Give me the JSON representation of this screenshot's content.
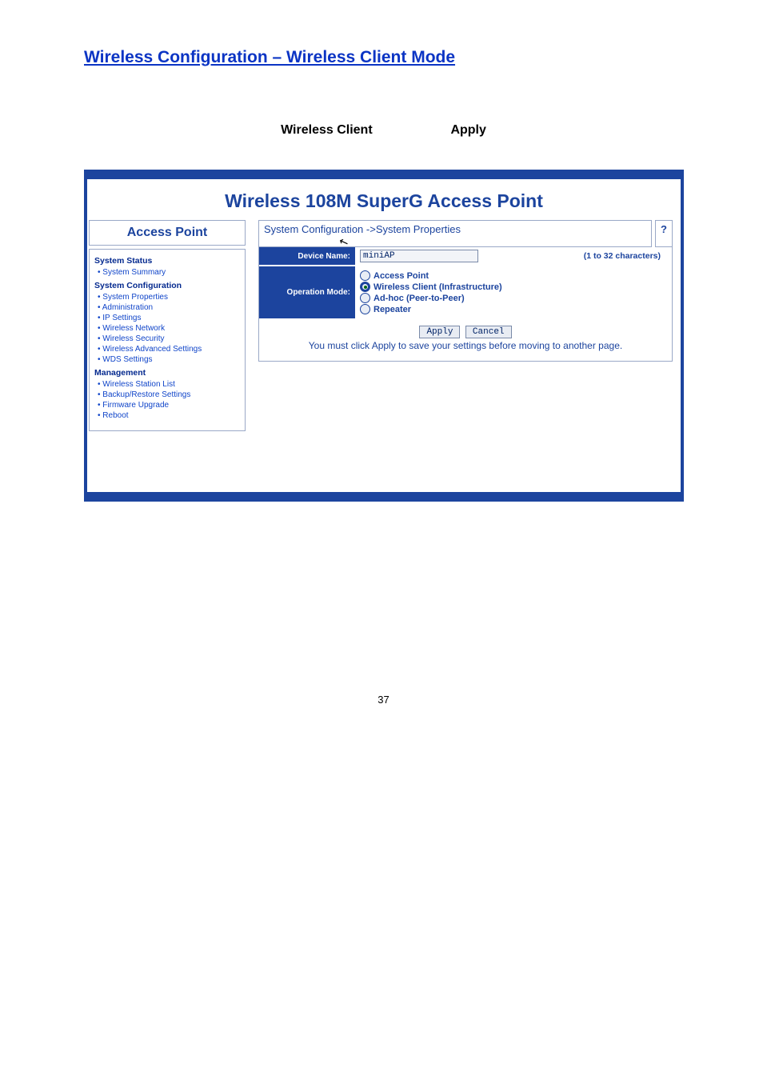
{
  "page": {
    "title": "Wireless Configuration – Wireless Client Mode",
    "instruction_a": "Wireless Client",
    "instruction_b": "Apply",
    "page_number": "37"
  },
  "screenshot": {
    "header": "Wireless 108M SuperG Access Point",
    "sidebar": {
      "logo_title": "Access Point",
      "group1": {
        "title": "System Status",
        "items": [
          "System Summary"
        ]
      },
      "group2": {
        "title": "System Configuration",
        "items": [
          "System Properties",
          "Administration",
          "IP Settings",
          "Wireless Network",
          "Wireless Security",
          "Wireless Advanced Settings",
          "WDS Settings"
        ]
      },
      "group3": {
        "title": "Management",
        "items": [
          "Wireless Station List",
          "Backup/Restore Settings",
          "Firmware Upgrade",
          "Reboot"
        ]
      }
    },
    "main": {
      "breadcrumb": "System Configuration ->System Properties",
      "help": "?",
      "device_name_label": "Device Name:",
      "device_name_value": "miniAP",
      "char_hint": "(1 to 32 characters)",
      "op_mode_label": "Operation Mode:",
      "op_modes": {
        "m0": "Access Point",
        "m1": "Wireless Client (Infrastructure)",
        "m2": "Ad-hoc (Peer-to-Peer)",
        "m3": "Repeater"
      },
      "selected_mode_index": 1,
      "apply_btn": "Apply",
      "cancel_btn": "Cancel",
      "note": "You must click Apply to save your settings before moving to another page."
    },
    "colors": {
      "frame_blue": "#1c449e",
      "link_blue": "#0b34c4",
      "panel_border": "#9aa8c7"
    }
  }
}
